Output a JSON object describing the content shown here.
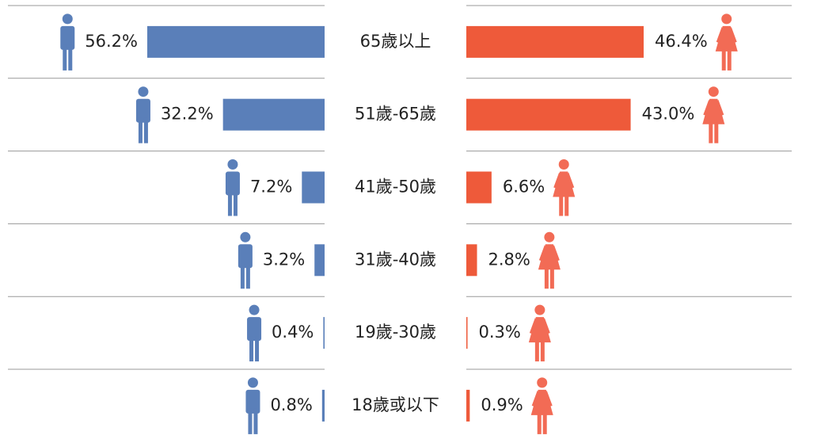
{
  "chart_data": {
    "type": "butterfly-bar",
    "categories": [
      "65歲以上",
      "51歲-65歲",
      "41歲-50歲",
      "31歲-40歲",
      "19歲-30歲",
      "18歲或以下"
    ],
    "series": [
      {
        "name": null,
        "color": "#5a7fb9",
        "values": [
          56.2,
          32.2,
          7.2,
          3.2,
          0.4,
          0.8
        ],
        "value_labels": [
          "56.2%",
          "32.2%",
          "7.2%",
          "3.2%",
          "0.4%",
          "0.8%"
        ]
      },
      {
        "name": null,
        "color": "#ee5a3a",
        "values": [
          46.4,
          43.0,
          6.6,
          2.8,
          0.3,
          0.9
        ],
        "value_labels": [
          "46.4%",
          "43.0%",
          "6.6%",
          "2.8%",
          "0.3%",
          "0.9%"
        ]
      }
    ]
  }
}
